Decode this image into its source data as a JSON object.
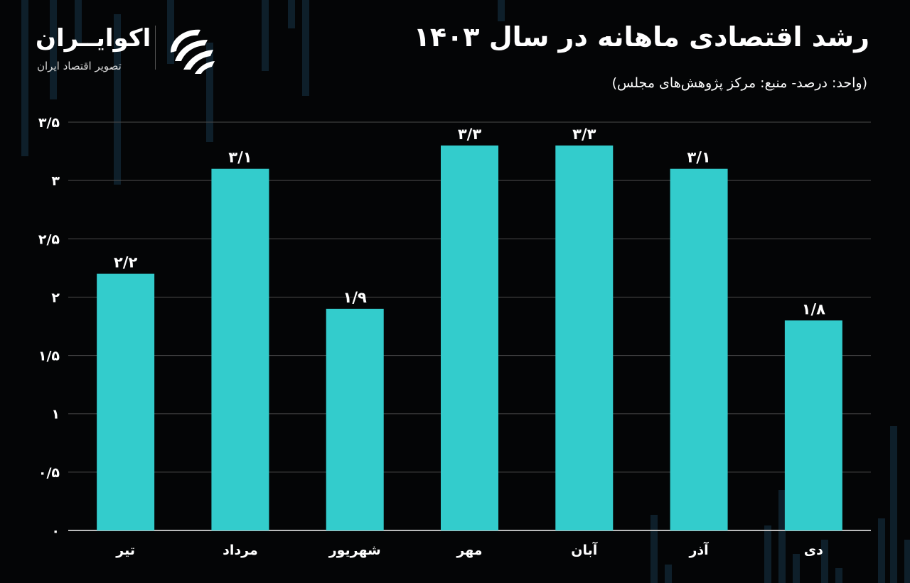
{
  "header": {
    "title": "رشد اقتصادی ماهانه در سال ۱۴۰۳",
    "subtitle": "(واحد: درصد- منبع: مرکز پژوهش‌های مجلس)"
  },
  "logo": {
    "name": "اکوایــران",
    "tagline": "تصویر اقتصاد ایران",
    "mark_icon": "ecoiran-logo-icon"
  },
  "colors": {
    "background": "#040506",
    "bar": "#33cccc",
    "grid": "#4a4a4a",
    "text": "#ffffff"
  },
  "chart_data": {
    "type": "bar",
    "categories": [
      "تیر",
      "مرداد",
      "شهریور",
      "مهر",
      "آبان",
      "آذر",
      "دی"
    ],
    "values": [
      2.2,
      3.1,
      1.9,
      3.3,
      3.3,
      3.1,
      1.8
    ],
    "value_labels": [
      "۲/۲",
      "۳/۱",
      "۱/۹",
      "۳/۳",
      "۳/۳",
      "۳/۱",
      "۱/۸"
    ],
    "y_ticks": [
      0,
      0.5,
      1,
      1.5,
      2,
      2.5,
      3,
      3.5
    ],
    "y_tick_labels": [
      "۰",
      "۰/۵",
      "۱",
      "۱/۵",
      "۲",
      "۲/۵",
      "۳",
      "۳/۵"
    ],
    "ylim": [
      0,
      3.5
    ],
    "grid": true,
    "legend": "none",
    "title": "رشد اقتصادی ماهانه در سال ۱۴۰۳"
  }
}
